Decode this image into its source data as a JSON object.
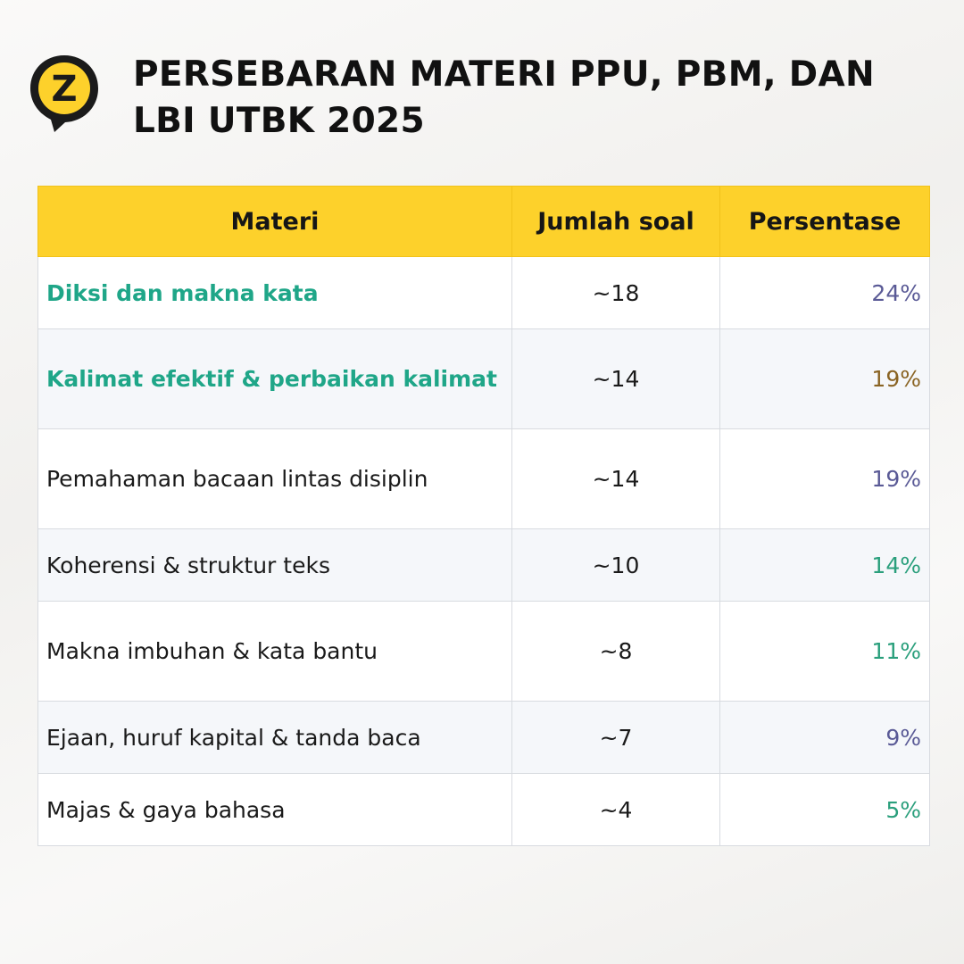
{
  "header": {
    "title_line1": "PERSEBARAN MATERI PPU, PBM, DAN",
    "title_line2": "LBI UTBK 2025",
    "logo_letter": "Z",
    "logo_icon": "z-map-pin-logo-icon"
  },
  "colors": {
    "brand_yellow": "#fdd12b",
    "highlight_green": "#1fa688",
    "pct_purple": "#5a5a96",
    "pct_brown": "#8a6424",
    "pct_green": "#2a9f7c"
  },
  "table": {
    "columns": [
      "Materi",
      "Jumlah soal",
      "Persentase"
    ],
    "rows": [
      {
        "topic": "Diksi dan makna kata",
        "count": "~18",
        "percent": "24%",
        "highlight": true,
        "pct_color": "#5a5a96"
      },
      {
        "topic": "Kalimat efektif & perbaikan kalimat",
        "count": "~14",
        "percent": "19%",
        "highlight": true,
        "pct_color": "#8a6424"
      },
      {
        "topic": "Pemahaman bacaan lintas disiplin",
        "count": "~14",
        "percent": "19%",
        "highlight": false,
        "pct_color": "#5a5a96"
      },
      {
        "topic": "Koherensi & struktur teks",
        "count": "~10",
        "percent": "14%",
        "highlight": false,
        "pct_color": "#2a9f7c"
      },
      {
        "topic": "Makna imbuhan & kata bantu",
        "count": "~8",
        "percent": "11%",
        "highlight": false,
        "pct_color": "#2a9f7c"
      },
      {
        "topic": "Ejaan, huruf kapital & tanda baca",
        "count": "~7",
        "percent": "9%",
        "highlight": false,
        "pct_color": "#5a5a96"
      },
      {
        "topic": "Majas & gaya bahasa",
        "count": "~4",
        "percent": "5%",
        "highlight": false,
        "pct_color": "#2a9f7c"
      }
    ]
  }
}
